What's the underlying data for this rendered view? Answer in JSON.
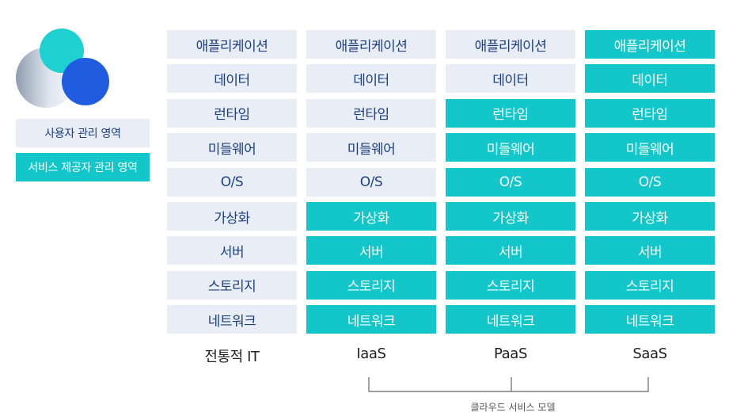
{
  "legend": {
    "user_managed": "사용자 관리 영역",
    "provider_managed": "서비스 제공자 관리 영역"
  },
  "colors": {
    "user": "#e9eef6",
    "provider": "#12c6c9",
    "user_text": "#1b3f80",
    "provider_text": "#ffffff"
  },
  "columns": [
    {
      "label": "전통적 IT",
      "cells": [
        {
          "text": "애플리케이션",
          "managed_by": "user"
        },
        {
          "text": "데이터",
          "managed_by": "user"
        },
        {
          "text": "런타임",
          "managed_by": "user"
        },
        {
          "text": "미들웨어",
          "managed_by": "user"
        },
        {
          "text": "O/S",
          "managed_by": "user"
        },
        {
          "text": "가상화",
          "managed_by": "user"
        },
        {
          "text": "서버",
          "managed_by": "user"
        },
        {
          "text": "스토리지",
          "managed_by": "user"
        },
        {
          "text": "네트워크",
          "managed_by": "user"
        }
      ]
    },
    {
      "label": "IaaS",
      "cells": [
        {
          "text": "애플리케이션",
          "managed_by": "user"
        },
        {
          "text": "데이터",
          "managed_by": "user"
        },
        {
          "text": "런타임",
          "managed_by": "user"
        },
        {
          "text": "미들웨어",
          "managed_by": "user"
        },
        {
          "text": "O/S",
          "managed_by": "user"
        },
        {
          "text": "가상화",
          "managed_by": "provider"
        },
        {
          "text": "서버",
          "managed_by": "provider"
        },
        {
          "text": "스토리지",
          "managed_by": "provider"
        },
        {
          "text": "네트워크",
          "managed_by": "provider"
        }
      ]
    },
    {
      "label": "PaaS",
      "cells": [
        {
          "text": "애플리케이션",
          "managed_by": "user"
        },
        {
          "text": "데이터",
          "managed_by": "user"
        },
        {
          "text": "런타임",
          "managed_by": "provider"
        },
        {
          "text": "미들웨어",
          "managed_by": "provider"
        },
        {
          "text": "O/S",
          "managed_by": "provider"
        },
        {
          "text": "가상화",
          "managed_by": "provider"
        },
        {
          "text": "서버",
          "managed_by": "provider"
        },
        {
          "text": "스토리지",
          "managed_by": "provider"
        },
        {
          "text": "네트워크",
          "managed_by": "provider"
        }
      ]
    },
    {
      "label": "SaaS",
      "cells": [
        {
          "text": "애플리케이션",
          "managed_by": "provider"
        },
        {
          "text": "데이터",
          "managed_by": "provider"
        },
        {
          "text": "런타임",
          "managed_by": "provider"
        },
        {
          "text": "미들웨어",
          "managed_by": "provider"
        },
        {
          "text": "O/S",
          "managed_by": "provider"
        },
        {
          "text": "가상화",
          "managed_by": "provider"
        },
        {
          "text": "서버",
          "managed_by": "provider"
        },
        {
          "text": "스토리지",
          "managed_by": "provider"
        },
        {
          "text": "네트워크",
          "managed_by": "provider"
        }
      ]
    }
  ],
  "bracket_label": "클라우드 서비스 모델"
}
